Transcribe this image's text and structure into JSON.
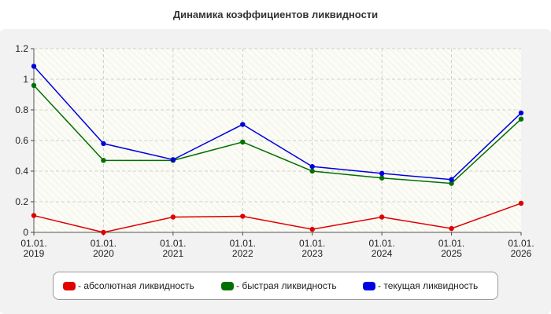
{
  "chart_data": {
    "type": "line",
    "title": "Динамика коэффициентов ликвидности",
    "categories": [
      "01.01.\n2019",
      "01.01.\n2020",
      "01.01.\n2021",
      "01.01.\n2022",
      "01.01.\n2023",
      "01.01.\n2024",
      "01.01.\n2025",
      "01.01.\n2026"
    ],
    "ylim": [
      0,
      1.2
    ],
    "yticks": [
      "0",
      "0.2",
      "0.4",
      "0.6",
      "0.8",
      "1",
      "1.2"
    ],
    "grid": true,
    "legend_position": "bottom",
    "series": [
      {
        "name": "- абсолютная ликвидность",
        "color": "#e00000",
        "values": [
          0.11,
          0.0,
          0.1,
          0.105,
          0.02,
          0.1,
          0.025,
          0.19
        ]
      },
      {
        "name": "- быстрая ликвидность",
        "color": "#007000",
        "values": [
          0.96,
          0.47,
          0.47,
          0.59,
          0.4,
          0.355,
          0.32,
          0.74
        ]
      },
      {
        "name": "- текущая ликвидность",
        "color": "#0000e0",
        "values": [
          1.085,
          0.58,
          0.475,
          0.705,
          0.43,
          0.385,
          0.345,
          0.78
        ]
      }
    ]
  }
}
